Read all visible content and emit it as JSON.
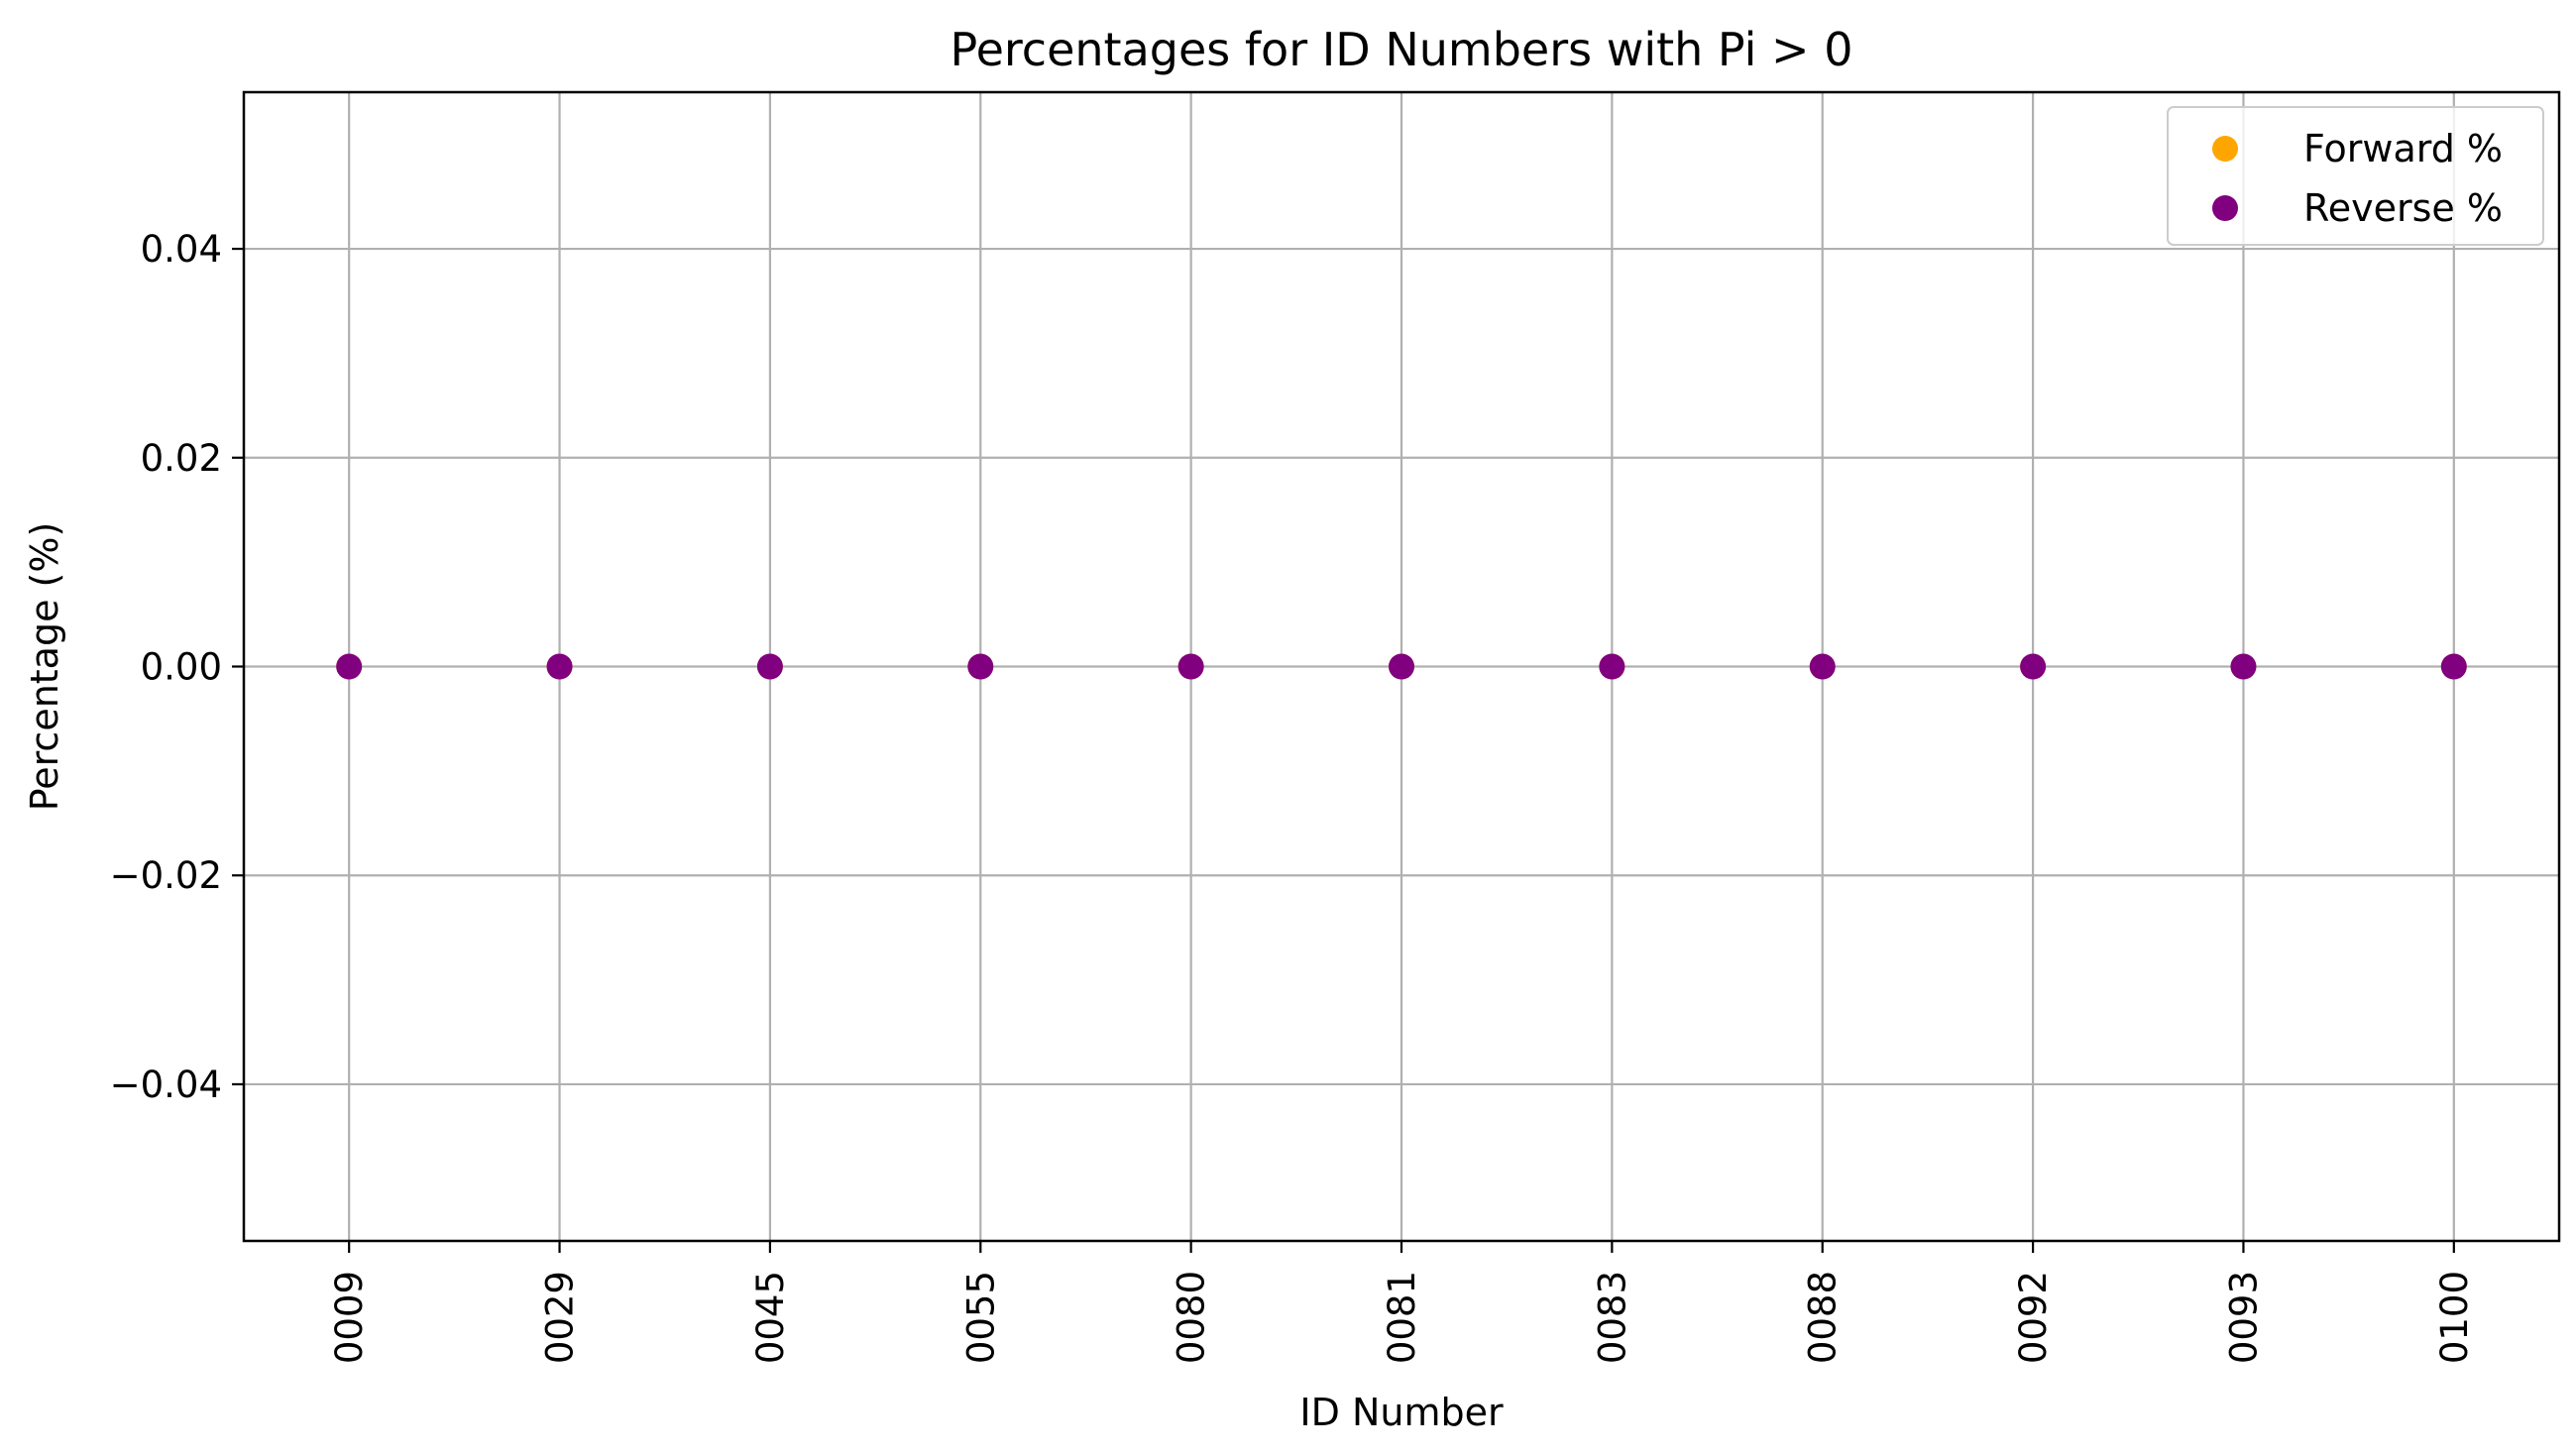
{
  "chart_data": {
    "type": "scatter",
    "title": "Percentages for ID Numbers with Pi > 0",
    "xlabel": "ID Number",
    "ylabel": "Percentage (%)",
    "categories": [
      "0009",
      "0029",
      "0045",
      "0055",
      "0080",
      "0081",
      "0083",
      "0088",
      "0092",
      "0093",
      "0100"
    ],
    "series": [
      {
        "name": "Forward %",
        "color": "#ffa500",
        "values": [
          0,
          0,
          0,
          0,
          0,
          0,
          0,
          0,
          0,
          0,
          0
        ]
      },
      {
        "name": "Reverse %",
        "color": "#800080",
        "values": [
          0,
          0,
          0,
          0,
          0,
          0,
          0,
          0,
          0,
          0,
          0
        ]
      }
    ],
    "ylim": [
      -0.055,
      0.055
    ],
    "yticks": [
      -0.04,
      -0.02,
      0.0,
      0.02,
      0.04
    ],
    "ytick_labels": [
      "−0.04",
      "−0.02",
      "0.00",
      "0.02",
      "0.04"
    ],
    "grid": true,
    "legend_position": "top-right"
  }
}
